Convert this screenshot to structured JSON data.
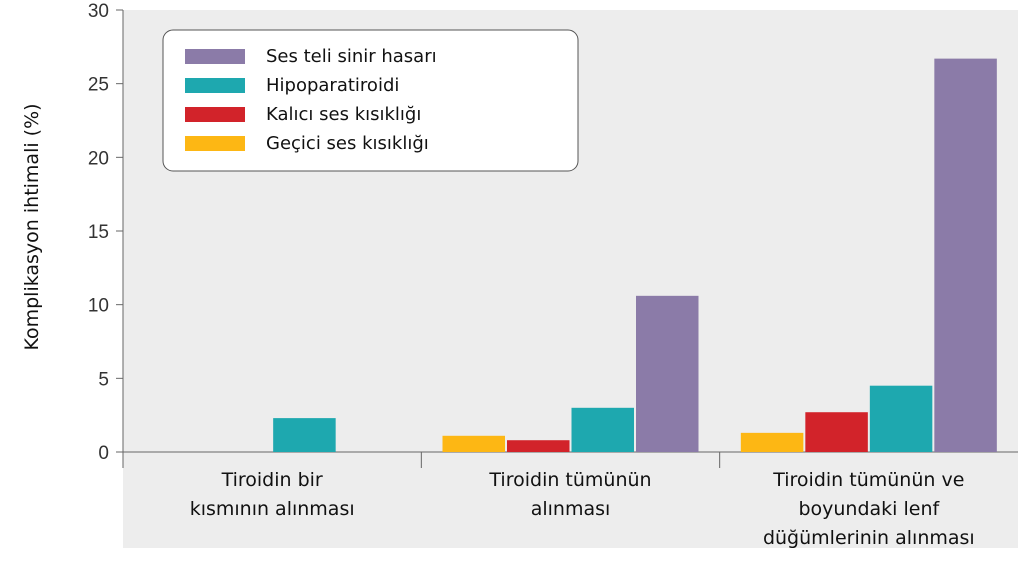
{
  "chart_data": {
    "type": "bar",
    "ylabel": "Komplikasyon ihtimali  (%)",
    "xlabel": "",
    "ylim": [
      0,
      30
    ],
    "yticks": [
      0,
      5,
      10,
      15,
      20,
      25,
      30
    ],
    "grid": false,
    "legend_position": "top-left",
    "categories": [
      [
        "Tiroidin bir",
        "kısmının alınması"
      ],
      [
        "Tiroidin tümünün",
        "alınması"
      ],
      [
        "Tiroidin tümünün ve",
        "boyundaki lenf",
        "düğümlerinin  alınması"
      ]
    ],
    "series": [
      {
        "name": "Geçici ses kısıklığı",
        "color": "#FDB714",
        "values": [
          0,
          1.1,
          1.3
        ]
      },
      {
        "name": "Kalıcı ses kısıklığı",
        "color": "#D2232A",
        "values": [
          0,
          0.8,
          2.7
        ]
      },
      {
        "name": "Hipoparatiroidi",
        "color": "#1EA8AF",
        "values": [
          2.3,
          3.0,
          4.5
        ]
      },
      {
        "name": "Ses teli sinir hasarı",
        "color": "#8B7BA8",
        "values": [
          0,
          10.6,
          26.7
        ]
      }
    ],
    "legend_order": [
      3,
      2,
      1,
      0
    ],
    "background_color": "#EDEDED",
    "axis_color": "#666666"
  }
}
